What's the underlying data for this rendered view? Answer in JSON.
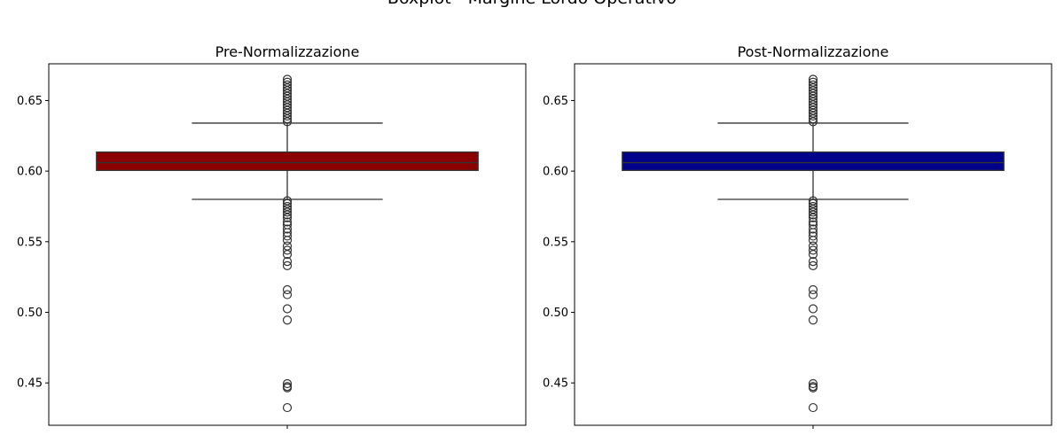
{
  "figure": {
    "title": "Boxplot - Margine Lordo Operativo"
  },
  "chart_data": [
    {
      "type": "box",
      "title": "Pre-Normalizzazione",
      "xlabel": "",
      "ylabel": "",
      "ylim": [
        0.42,
        0.676
      ],
      "yticks": [
        "0.45",
        "0.50",
        "0.55",
        "0.60",
        "0.65"
      ],
      "ytick_values": [
        0.45,
        0.5,
        0.55,
        0.6,
        0.65
      ],
      "color": "#8b0000",
      "box": {
        "whisker_low": 0.58,
        "q1": 0.6005,
        "median": 0.606,
        "q3": 0.6135,
        "whisker_high": 0.634
      },
      "outliers": [
        0.4325,
        0.4465,
        0.4475,
        0.4495,
        0.4945,
        0.5025,
        0.5125,
        0.516,
        0.533,
        0.536,
        0.541,
        0.544,
        0.547,
        0.551,
        0.554,
        0.5565,
        0.559,
        0.562,
        0.564,
        0.567,
        0.569,
        0.571,
        0.573,
        0.575,
        0.577,
        0.579,
        0.635,
        0.637,
        0.639,
        0.641,
        0.643,
        0.645,
        0.647,
        0.649,
        0.651,
        0.653,
        0.655,
        0.657,
        0.659,
        0.661,
        0.663,
        0.665
      ]
    },
    {
      "type": "box",
      "title": "Post-Normalizzazione",
      "xlabel": "",
      "ylabel": "",
      "ylim": [
        0.42,
        0.676
      ],
      "yticks": [
        "0.45",
        "0.50",
        "0.55",
        "0.60",
        "0.65"
      ],
      "ytick_values": [
        0.45,
        0.5,
        0.55,
        0.6,
        0.65
      ],
      "color": "#00008b",
      "box": {
        "whisker_low": 0.58,
        "q1": 0.6005,
        "median": 0.606,
        "q3": 0.6135,
        "whisker_high": 0.634
      },
      "outliers": [
        0.4325,
        0.4465,
        0.4475,
        0.4495,
        0.4945,
        0.5025,
        0.5125,
        0.516,
        0.533,
        0.536,
        0.541,
        0.544,
        0.547,
        0.551,
        0.554,
        0.5565,
        0.559,
        0.562,
        0.564,
        0.567,
        0.569,
        0.571,
        0.573,
        0.575,
        0.577,
        0.579,
        0.635,
        0.637,
        0.639,
        0.641,
        0.643,
        0.645,
        0.647,
        0.649,
        0.651,
        0.653,
        0.655,
        0.657,
        0.659,
        0.661,
        0.663,
        0.665
      ]
    }
  ]
}
